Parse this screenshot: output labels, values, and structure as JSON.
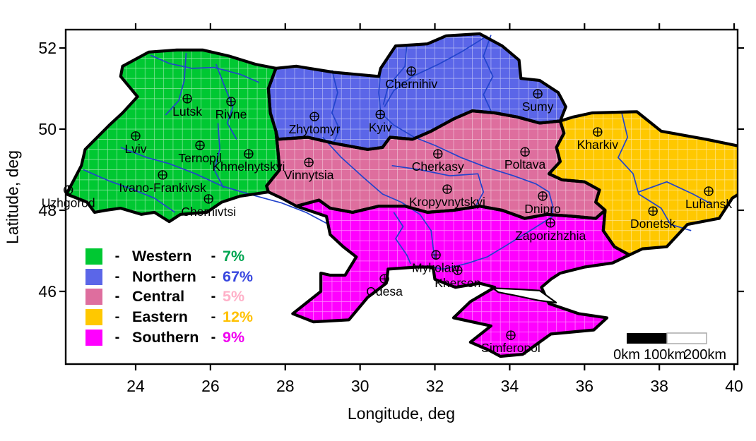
{
  "axes": {
    "xlabel": "Longitude, deg",
    "ylabel": "Latitude, deg",
    "x_ticks": [
      24,
      26,
      28,
      30,
      32,
      34,
      36,
      38,
      40
    ],
    "y_ticks": [
      46,
      48,
      50,
      52
    ],
    "x_range": [
      22.1,
      40.06
    ],
    "y_range": [
      44.2,
      52.45
    ]
  },
  "legend": {
    "items": [
      {
        "name": "Western",
        "percent": "7%",
        "swatch": "#00C832",
        "percent_color": "#00A551"
      },
      {
        "name": "Northern",
        "percent": "67%",
        "swatch": "#5B66E8",
        "percent_color": "#3847DF"
      },
      {
        "name": "Central",
        "percent": "5%",
        "swatch": "#DE6E9E",
        "percent_color": "#FFB0C8"
      },
      {
        "name": "Eastern",
        "percent": "12%",
        "swatch": "#FFC800",
        "percent_color": "#FFC100"
      },
      {
        "name": "Southern",
        "percent": "9%",
        "swatch": "#FF00FF",
        "percent_color": "#F000F0"
      }
    ]
  },
  "scale_bar": {
    "labels": [
      "0km",
      "100km",
      "200km"
    ]
  },
  "cities": [
    {
      "name": "Uzhgorod",
      "lon": 22.2,
      "lat": 48.5
    },
    {
      "name": "Lviv",
      "lon": 24.0,
      "lat": 49.83
    },
    {
      "name": "Lutsk",
      "lon": 25.38,
      "lat": 50.75
    },
    {
      "name": "Rivne",
      "lon": 26.55,
      "lat": 50.68
    },
    {
      "name": "Ternopil",
      "lon": 25.72,
      "lat": 49.6
    },
    {
      "name": "Khmelnytskyi",
      "lon": 27.02,
      "lat": 49.39
    },
    {
      "name": "Ivano-Frankivsk",
      "lon": 24.72,
      "lat": 48.87
    },
    {
      "name": "Chernivtsi",
      "lon": 25.95,
      "lat": 48.28
    },
    {
      "name": "Zhytomyr",
      "lon": 28.78,
      "lat": 50.31
    },
    {
      "name": "Kyiv",
      "lon": 30.54,
      "lat": 50.36
    },
    {
      "name": "Chernihiv",
      "lon": 31.37,
      "lat": 51.43
    },
    {
      "name": "Sumy",
      "lon": 34.75,
      "lat": 50.87
    },
    {
      "name": "Vinnytsia",
      "lon": 28.63,
      "lat": 49.18
    },
    {
      "name": "Cherkasy",
      "lon": 32.08,
      "lat": 49.39
    },
    {
      "name": "Poltava",
      "lon": 34.41,
      "lat": 49.44
    },
    {
      "name": "Kropyvnytskyi",
      "lon": 32.33,
      "lat": 48.52
    },
    {
      "name": "Dnipro",
      "lon": 34.88,
      "lat": 48.35
    },
    {
      "name": "Zaporizhzhia",
      "lon": 35.09,
      "lat": 47.69
    },
    {
      "name": "Kharkiv",
      "lon": 36.35,
      "lat": 49.93
    },
    {
      "name": "Luhansk",
      "lon": 39.32,
      "lat": 48.47
    },
    {
      "name": "Donetsk",
      "lon": 37.83,
      "lat": 47.98
    },
    {
      "name": "Mykolaiv",
      "lon": 32.03,
      "lat": 46.9
    },
    {
      "name": "Kherson",
      "lon": 32.61,
      "lat": 46.52
    },
    {
      "name": "Odesa",
      "lon": 30.65,
      "lat": 46.31
    },
    {
      "name": "Simferopol",
      "lon": 34.03,
      "lat": 44.92
    }
  ],
  "map_regions": [
    {
      "name": "western",
      "color": "#00C832",
      "points": [
        [
          23.65,
          51.55
        ],
        [
          24.35,
          51.9
        ],
        [
          25.1,
          51.95
        ],
        [
          25.8,
          51.95
        ],
        [
          26.5,
          51.8
        ],
        [
          27.2,
          51.6
        ],
        [
          27.75,
          51.5
        ],
        [
          27.55,
          51.0
        ],
        [
          27.6,
          50.4
        ],
        [
          27.75,
          49.95
        ],
        [
          27.8,
          49.5
        ],
        [
          27.85,
          49.0
        ],
        [
          27.5,
          48.6
        ],
        [
          27.55,
          48.45
        ],
        [
          26.8,
          48.35
        ],
        [
          26.3,
          48.2
        ],
        [
          25.9,
          47.95
        ],
        [
          25.2,
          47.9
        ],
        [
          24.9,
          47.72
        ],
        [
          24.5,
          47.95
        ],
        [
          24.15,
          47.9
        ],
        [
          23.6,
          48.05
        ],
        [
          23.2,
          48.0
        ],
        [
          22.9,
          47.95
        ],
        [
          22.7,
          48.2
        ],
        [
          22.15,
          48.4
        ],
        [
          22.55,
          49.1
        ],
        [
          22.65,
          49.5
        ],
        [
          23.3,
          50.1
        ],
        [
          23.65,
          50.4
        ],
        [
          24.05,
          50.8
        ],
        [
          23.6,
          51.3
        ]
      ]
    },
    {
      "name": "northern",
      "color": "#5B66E8",
      "points": [
        [
          27.75,
          51.5
        ],
        [
          28.3,
          51.55
        ],
        [
          29.3,
          51.4
        ],
        [
          30.5,
          51.3
        ],
        [
          30.55,
          51.5
        ],
        [
          30.95,
          52.05
        ],
        [
          31.8,
          52.1
        ],
        [
          32.3,
          52.3
        ],
        [
          33.2,
          52.35
        ],
        [
          33.8,
          52.05
        ],
        [
          34.25,
          51.7
        ],
        [
          34.3,
          51.25
        ],
        [
          34.8,
          51.2
        ],
        [
          35.3,
          50.9
        ],
        [
          35.5,
          50.55
        ],
        [
          35.35,
          50.2
        ],
        [
          34.8,
          50.15
        ],
        [
          34.2,
          50.3
        ],
        [
          33.6,
          50.4
        ],
        [
          33.0,
          50.45
        ],
        [
          32.5,
          50.25
        ],
        [
          31.9,
          49.95
        ],
        [
          31.4,
          49.75
        ],
        [
          30.8,
          49.8
        ],
        [
          30.6,
          49.55
        ],
        [
          30.2,
          49.5
        ],
        [
          29.3,
          49.65
        ],
        [
          28.6,
          49.8
        ],
        [
          27.8,
          49.75
        ],
        [
          27.75,
          49.95
        ],
        [
          27.6,
          50.4
        ],
        [
          27.55,
          51.0
        ]
      ]
    },
    {
      "name": "central",
      "color": "#DE6E9E",
      "points": [
        [
          27.75,
          49.95
        ],
        [
          27.8,
          49.75
        ],
        [
          28.6,
          49.8
        ],
        [
          29.3,
          49.65
        ],
        [
          30.2,
          49.5
        ],
        [
          30.6,
          49.55
        ],
        [
          30.8,
          49.8
        ],
        [
          31.4,
          49.75
        ],
        [
          31.9,
          49.95
        ],
        [
          32.5,
          50.25
        ],
        [
          33.0,
          50.45
        ],
        [
          33.6,
          50.4
        ],
        [
          34.2,
          50.3
        ],
        [
          34.8,
          50.15
        ],
        [
          35.35,
          50.2
        ],
        [
          35.45,
          49.9
        ],
        [
          35.25,
          49.55
        ],
        [
          35.35,
          49.2
        ],
        [
          35.05,
          48.9
        ],
        [
          35.4,
          48.75
        ],
        [
          36.0,
          48.7
        ],
        [
          36.4,
          48.5
        ],
        [
          36.3,
          48.2
        ],
        [
          36.55,
          48.0
        ],
        [
          36.3,
          47.8
        ],
        [
          35.7,
          47.85
        ],
        [
          35.0,
          47.9
        ],
        [
          34.4,
          47.8
        ],
        [
          33.8,
          48.0
        ],
        [
          33.2,
          48.1
        ],
        [
          32.5,
          48.0
        ],
        [
          31.8,
          47.95
        ],
        [
          31.2,
          48.1
        ],
        [
          30.5,
          48.1
        ],
        [
          29.8,
          47.95
        ],
        [
          29.2,
          48.05
        ],
        [
          28.9,
          48.25
        ],
        [
          28.3,
          48.1
        ],
        [
          27.9,
          48.3
        ],
        [
          27.55,
          48.45
        ],
        [
          27.5,
          48.6
        ],
        [
          27.85,
          49.0
        ],
        [
          27.8,
          49.5
        ]
      ]
    },
    {
      "name": "eastern",
      "color": "#FFC800",
      "points": [
        [
          35.35,
          50.2
        ],
        [
          35.45,
          49.9
        ],
        [
          35.25,
          49.55
        ],
        [
          35.35,
          49.2
        ],
        [
          35.05,
          48.9
        ],
        [
          35.4,
          48.75
        ],
        [
          36.0,
          48.7
        ],
        [
          36.4,
          48.5
        ],
        [
          36.3,
          48.2
        ],
        [
          36.55,
          48.0
        ],
        [
          36.5,
          47.5
        ],
        [
          36.8,
          47.1
        ],
        [
          37.2,
          46.9
        ],
        [
          37.55,
          47.05
        ],
        [
          38.2,
          47.1
        ],
        [
          38.75,
          47.65
        ],
        [
          39.6,
          47.8
        ],
        [
          39.95,
          48.3
        ],
        [
          40.3,
          48.5
        ],
        [
          40.3,
          49.55
        ],
        [
          39.25,
          49.75
        ],
        [
          38.05,
          49.95
        ],
        [
          37.4,
          50.43
        ],
        [
          36.2,
          50.4
        ],
        [
          35.7,
          50.3
        ]
      ]
    },
    {
      "name": "southern",
      "color": "#FF00FF",
      "points": [
        [
          28.3,
          48.1
        ],
        [
          28.9,
          48.25
        ],
        [
          29.2,
          48.05
        ],
        [
          29.8,
          47.95
        ],
        [
          30.5,
          48.1
        ],
        [
          31.2,
          48.1
        ],
        [
          31.8,
          47.95
        ],
        [
          32.5,
          48.0
        ],
        [
          33.2,
          48.1
        ],
        [
          33.8,
          48.0
        ],
        [
          34.4,
          47.8
        ],
        [
          35.0,
          47.9
        ],
        [
          35.7,
          47.85
        ],
        [
          36.3,
          47.8
        ],
        [
          36.55,
          48.0
        ],
        [
          36.5,
          47.5
        ],
        [
          36.8,
          47.1
        ],
        [
          37.2,
          46.9
        ],
        [
          36.75,
          46.7
        ],
        [
          36.0,
          46.6
        ],
        [
          35.35,
          46.45
        ],
        [
          35.1,
          46.3
        ],
        [
          34.85,
          46.1
        ],
        [
          35.05,
          45.7
        ],
        [
          35.85,
          45.45
        ],
        [
          36.6,
          45.35
        ],
        [
          36.25,
          45.05
        ],
        [
          35.1,
          44.95
        ],
        [
          34.35,
          44.45
        ],
        [
          33.75,
          44.4
        ],
        [
          33.45,
          44.55
        ],
        [
          32.95,
          44.75
        ],
        [
          33.5,
          45.15
        ],
        [
          32.5,
          45.35
        ],
        [
          32.95,
          45.75
        ],
        [
          33.6,
          46.1
        ],
        [
          33.2,
          46.2
        ],
        [
          32.55,
          46.1
        ],
        [
          32.0,
          46.3
        ],
        [
          31.95,
          46.6
        ],
        [
          31.5,
          46.6
        ],
        [
          30.75,
          46.55
        ],
        [
          30.7,
          46.2
        ],
        [
          30.2,
          45.85
        ],
        [
          29.7,
          45.3
        ],
        [
          28.75,
          45.25
        ],
        [
          28.2,
          45.45
        ],
        [
          28.95,
          46.0
        ],
        [
          28.95,
          46.45
        ],
        [
          29.2,
          46.4
        ],
        [
          29.6,
          46.4
        ],
        [
          29.9,
          46.85
        ],
        [
          29.55,
          47.1
        ],
        [
          29.2,
          47.4
        ],
        [
          29.1,
          47.85
        ]
      ]
    }
  ],
  "sea_inlets": [
    [
      [
        33.55,
        46.08
      ],
      [
        34.3,
        46.05
      ],
      [
        34.8,
        46.02
      ],
      [
        35.25,
        45.72
      ],
      [
        34.75,
        45.78
      ],
      [
        34.15,
        45.9
      ],
      [
        33.7,
        45.98
      ]
    ]
  ],
  "internal_borders": [
    [
      [
        30.55,
        51.45
      ],
      [
        30.5,
        50.9
      ],
      [
        30.55,
        50.4
      ],
      [
        30.9,
        50.1
      ],
      [
        31.45,
        49.8
      ],
      [
        32.0,
        49.6
      ],
      [
        32.7,
        49.3
      ],
      [
        33.4,
        49.05
      ],
      [
        34.1,
        48.85
      ],
      [
        34.7,
        48.65
      ],
      [
        35.05,
        48.45
      ],
      [
        35.15,
        48.1
      ],
      [
        35.15,
        47.85
      ],
      [
        34.55,
        47.5
      ],
      [
        33.85,
        47.1
      ],
      [
        33.4,
        46.85
      ],
      [
        32.9,
        46.7
      ],
      [
        32.55,
        46.62
      ],
      [
        32.2,
        46.55
      ],
      [
        31.95,
        46.6
      ]
    ],
    [
      [
        33.4,
        52.3
      ],
      [
        32.7,
        51.9
      ],
      [
        32.1,
        51.6
      ],
      [
        31.4,
        51.3
      ],
      [
        30.9,
        50.95
      ],
      [
        30.65,
        50.55
      ]
    ],
    [
      [
        31.25,
        52.08
      ],
      [
        31.2,
        51.55
      ],
      [
        30.75,
        51.05
      ],
      [
        30.62,
        50.6
      ]
    ],
    [
      [
        33.5,
        52.32
      ],
      [
        33.3,
        51.8
      ],
      [
        33.55,
        51.3
      ],
      [
        33.3,
        50.85
      ],
      [
        33.5,
        50.45
      ]
    ],
    [
      [
        29.25,
        51.45
      ],
      [
        29.4,
        50.9
      ],
      [
        29.25,
        50.4
      ],
      [
        29.45,
        50.0
      ],
      [
        29.3,
        49.68
      ]
    ],
    [
      [
        29.0,
        49.8
      ],
      [
        29.5,
        49.3
      ],
      [
        30.1,
        48.8
      ],
      [
        30.6,
        48.4
      ],
      [
        31.1,
        48.2
      ],
      [
        31.6,
        47.9
      ],
      [
        31.9,
        47.5
      ],
      [
        31.95,
        47.1
      ],
      [
        32.0,
        46.8
      ]
    ],
    [
      [
        23.6,
        49.55
      ],
      [
        24.3,
        49.3
      ],
      [
        24.9,
        49.15
      ],
      [
        25.6,
        48.9
      ],
      [
        26.3,
        48.6
      ],
      [
        27.1,
        48.38
      ],
      [
        27.9,
        48.18
      ],
      [
        28.55,
        47.95
      ],
      [
        29.1,
        47.68
      ]
    ],
    [
      [
        25.35,
        51.88
      ],
      [
        25.3,
        51.2
      ],
      [
        25.15,
        50.7
      ],
      [
        24.8,
        50.35
      ]
    ],
    [
      [
        22.6,
        49.0
      ],
      [
        23.3,
        48.72
      ],
      [
        23.9,
        48.52
      ],
      [
        24.5,
        48.3
      ],
      [
        25.05,
        47.95
      ]
    ],
    [
      [
        26.2,
        50.15
      ],
      [
        26.25,
        49.5
      ],
      [
        26.1,
        49.0
      ],
      [
        26.35,
        48.55
      ]
    ],
    [
      [
        26.15,
        51.6
      ],
      [
        26.4,
        51.0
      ],
      [
        26.6,
        50.55
      ],
      [
        26.45,
        50.15
      ],
      [
        26.7,
        49.75
      ]
    ],
    [
      [
        37.0,
        50.38
      ],
      [
        37.15,
        49.8
      ],
      [
        36.9,
        49.3
      ],
      [
        37.3,
        48.9
      ],
      [
        37.45,
        48.4
      ],
      [
        38.05,
        48.05
      ],
      [
        38.3,
        47.65
      ],
      [
        38.85,
        47.5
      ]
    ],
    [
      [
        37.45,
        48.45
      ],
      [
        38.2,
        48.7
      ],
      [
        38.9,
        48.4
      ],
      [
        39.4,
        48.15
      ]
    ],
    [
      [
        30.9,
        47.95
      ],
      [
        31.15,
        47.6
      ],
      [
        30.95,
        47.3
      ],
      [
        31.25,
        46.9
      ],
      [
        31.35,
        46.68
      ]
    ],
    [
      [
        30.85,
        49.1
      ],
      [
        31.6,
        49.0
      ],
      [
        32.4,
        48.85
      ],
      [
        33.15,
        48.9
      ],
      [
        33.3,
        48.45
      ],
      [
        33.1,
        48.12
      ]
    ],
    [
      [
        24.4,
        51.82
      ],
      [
        24.9,
        51.62
      ],
      [
        25.5,
        51.5
      ],
      [
        26.1,
        51.52
      ],
      [
        26.8,
        51.35
      ],
      [
        27.3,
        51.15
      ]
    ]
  ]
}
